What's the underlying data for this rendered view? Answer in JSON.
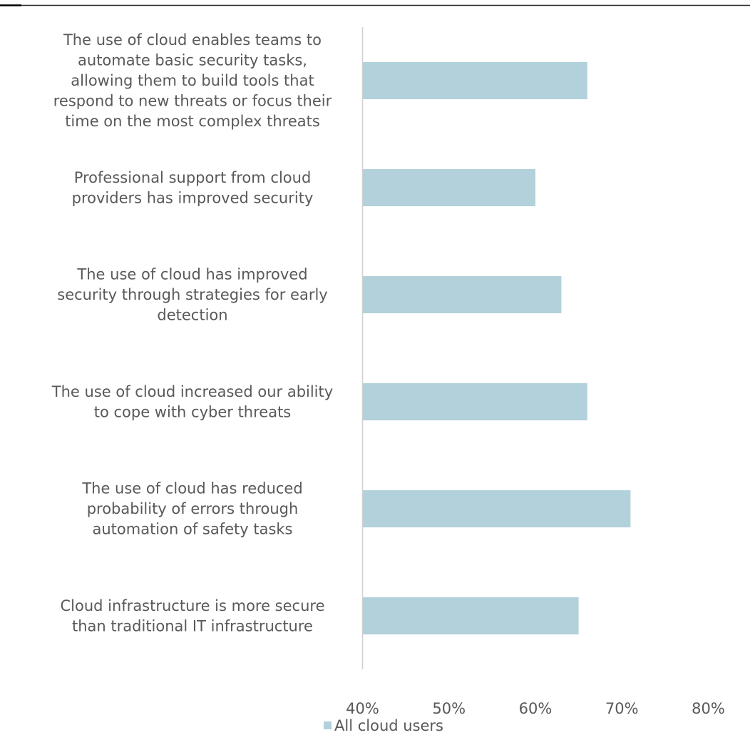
{
  "chart_data": {
    "type": "bar",
    "orientation": "horizontal",
    "categories": [
      "The use of cloud enables teams to automate basic security tasks, allowing them to build tools that respond to new threats or focus their time on the most complex threats",
      "Professional support from cloud providers has improved security",
      "The use of cloud has improved security through strategies for early detection",
      "The use of cloud increased our ability to cope with cyber threats",
      "The use of cloud has reduced probability of errors through automation of safety tasks",
      "Cloud infrastructure is more secure than traditional IT infrastructure"
    ],
    "category_lines": [
      [
        "The use of cloud enables teams to",
        "automate basic security tasks,",
        "allowing them to build tools that",
        "respond to new threats or focus their",
        "time on the most complex threats"
      ],
      [
        "Professional support from cloud",
        "providers has improved security"
      ],
      [
        "The use of cloud has improved",
        "security through strategies for early",
        "detection"
      ],
      [
        "The use of cloud increased our ability",
        "to cope with cyber threats"
      ],
      [
        "The use of cloud has reduced",
        "probability of errors through",
        "automation of safety tasks"
      ],
      [
        "Cloud infrastructure is more secure",
        "than traditional IT infrastructure"
      ]
    ],
    "series": [
      {
        "name": "All cloud users",
        "values": [
          66,
          60,
          63,
          66,
          71,
          65
        ],
        "color": "#b2d1da"
      }
    ],
    "xlim": [
      40,
      80
    ],
    "xticks": [
      40,
      50,
      60,
      70,
      80
    ],
    "xtick_labels": [
      "40%",
      "50%",
      "60%",
      "70%",
      "80%"
    ],
    "title": "",
    "xlabel": "",
    "ylabel": "",
    "grid": false,
    "legend_position": "bottom-center",
    "axis_color": "#d0d0d0",
    "text_color": "#595959",
    "top_rule_color": "#000000"
  }
}
